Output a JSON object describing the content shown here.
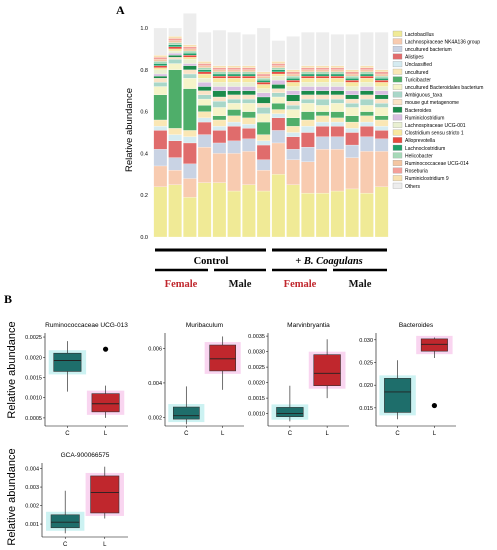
{
  "panel_a": {
    "label": "A",
    "chart_data": {
      "type": "bar",
      "stacked": true,
      "ylabel": "Relative abundance",
      "ylim": [
        0,
        1.0
      ],
      "yticks": [
        "0.0",
        "0.2",
        "0.4",
        "0.6",
        "0.8",
        "1.0"
      ],
      "n_samples": 16,
      "group_labels": [
        {
          "name": "control",
          "text": "Control"
        },
        {
          "name": "b-coagulans",
          "text": "+ B. Coagulans"
        }
      ],
      "sex_labels": [
        {
          "name": "female-1",
          "text": "Female",
          "color": "#c0272d"
        },
        {
          "name": "male-1",
          "text": "Male",
          "color": "#111111"
        },
        {
          "name": "female-2",
          "text": "Female",
          "color": "#c0272d"
        },
        {
          "name": "male-2",
          "text": "Male",
          "color": "#111111"
        }
      ],
      "series": [
        {
          "name": "Lactobacillus",
          "color": "#f0ea96",
          "values": [
            0.24,
            0.25,
            0.19,
            0.26,
            0.26,
            0.22,
            0.25,
            0.22,
            0.3,
            0.25,
            0.21,
            0.21,
            0.22,
            0.23,
            0.21,
            0.24
          ]
        },
        {
          "name": "Lachnospiraceae NK4A136 group",
          "color": "#f8cbb0",
          "values": [
            0.1,
            0.07,
            0.09,
            0.17,
            0.14,
            0.18,
            0.16,
            0.1,
            0.15,
            0.12,
            0.15,
            0.21,
            0.2,
            0.15,
            0.2,
            0.17
          ]
        },
        {
          "name": "uncultured bacterium",
          "color": "#c9d3e4",
          "values": [
            0.08,
            0.06,
            0.07,
            0.06,
            0.05,
            0.06,
            0.06,
            0.05,
            0.06,
            0.05,
            0.07,
            0.06,
            0.06,
            0.06,
            0.07,
            0.06
          ]
        },
        {
          "name": "Alistipes",
          "color": "#e06c6c",
          "values": [
            0.09,
            0.08,
            0.1,
            0.06,
            0.06,
            0.07,
            0.05,
            0.07,
            0.06,
            0.06,
            0.07,
            0.05,
            0.05,
            0.06,
            0.05,
            0.04
          ]
        },
        {
          "name": "Unclassified",
          "color": "#d5ebf1",
          "values": [
            0.02,
            0.03,
            0.03,
            0.02,
            0.02,
            0.02,
            0.02,
            0.02,
            0.02,
            0.02,
            0.03,
            0.02,
            0.02,
            0.02,
            0.02,
            0.02
          ]
        },
        {
          "name": "uncultured",
          "color": "#fae7b5",
          "values": [
            0.03,
            0.03,
            0.03,
            0.03,
            0.03,
            0.03,
            0.03,
            0.03,
            0.02,
            0.03,
            0.03,
            0.03,
            0.02,
            0.03,
            0.03,
            0.03
          ]
        },
        {
          "name": "Turicibacter",
          "color": "#4fae6a",
          "values": [
            0.12,
            0.28,
            0.2,
            0.03,
            0.02,
            0.03,
            0.03,
            0.06,
            0.03,
            0.04,
            0.04,
            0.02,
            0.03,
            0.03,
            0.02,
            0.02
          ]
        },
        {
          "name": "uncultured Bacteroidales bacterium",
          "color": "#f6f4c9",
          "values": [
            0.04,
            0.03,
            0.05,
            0.03,
            0.04,
            0.03,
            0.04,
            0.04,
            0.03,
            0.04,
            0.04,
            0.03,
            0.04,
            0.04,
            0.03,
            0.04
          ]
        },
        {
          "name": "Ambiguous_taxa",
          "color": "#a9d7c9",
          "values": [
            0.02,
            0.02,
            0.02,
            0.02,
            0.03,
            0.02,
            0.02,
            0.03,
            0.02,
            0.02,
            0.02,
            0.03,
            0.02,
            0.02,
            0.03,
            0.02
          ]
        },
        {
          "name": "mouse gut metagenome",
          "color": "#fbe3c6",
          "values": [
            0.02,
            0.01,
            0.02,
            0.02,
            0.02,
            0.02,
            0.02,
            0.02,
            0.02,
            0.02,
            0.02,
            0.02,
            0.02,
            0.02,
            0.02,
            0.02
          ]
        },
        {
          "name": "Bacteroides",
          "color": "#1c8b4b",
          "values": [
            0.01,
            0.01,
            0.02,
            0.02,
            0.03,
            0.02,
            0.02,
            0.03,
            0.02,
            0.03,
            0.02,
            0.02,
            0.02,
            0.02,
            0.02,
            0.02
          ]
        },
        {
          "name": "Ruminiclostridium",
          "color": "#d8bee1",
          "values": [
            0.01,
            0.01,
            0.01,
            0.02,
            0.02,
            0.02,
            0.02,
            0.02,
            0.02,
            0.02,
            0.02,
            0.02,
            0.02,
            0.02,
            0.02,
            0.02
          ]
        },
        {
          "name": "Lachnospiraceae UCG-001",
          "color": "#e9f0d2",
          "values": [
            0.02,
            0.01,
            0.02,
            0.02,
            0.02,
            0.02,
            0.02,
            0.02,
            0.02,
            0.02,
            0.02,
            0.02,
            0.02,
            0.02,
            0.02,
            0.02
          ]
        },
        {
          "name": "Clostridium sensu stricto 1",
          "color": "#f7e8a0",
          "values": [
            0.01,
            0.01,
            0.01,
            0.02,
            0.02,
            0.02,
            0.02,
            0.02,
            0.01,
            0.02,
            0.02,
            0.02,
            0.02,
            0.02,
            0.02,
            0.02
          ]
        },
        {
          "name": "Alloprevotella",
          "color": "#e8493d",
          "values": [
            0.01,
            0.01,
            0.01,
            0.01,
            0.01,
            0.01,
            0.01,
            0.01,
            0.01,
            0.01,
            0.01,
            0.01,
            0.01,
            0.01,
            0.01,
            0.01
          ]
        },
        {
          "name": "Lachnoclostridium",
          "color": "#1fa06a",
          "values": [
            0.01,
            0.01,
            0.01,
            0.01,
            0.01,
            0.01,
            0.01,
            0.01,
            0.01,
            0.01,
            0.01,
            0.01,
            0.01,
            0.01,
            0.01,
            0.01
          ]
        },
        {
          "name": "Helicobacter",
          "color": "#a6d9b8",
          "values": [
            0.01,
            0.01,
            0.01,
            0.01,
            0.01,
            0.01,
            0.01,
            0.01,
            0.01,
            0.01,
            0.01,
            0.01,
            0.01,
            0.01,
            0.01,
            0.01
          ]
        },
        {
          "name": "Ruminococcaceae UCG-014",
          "color": "#f4c6a2",
          "values": [
            0.01,
            0.01,
            0.01,
            0.01,
            0.01,
            0.01,
            0.01,
            0.01,
            0.01,
            0.01,
            0.01,
            0.01,
            0.01,
            0.01,
            0.01,
            0.01
          ]
        },
        {
          "name": "Roseburia",
          "color": "#f3a09a",
          "values": [
            0.01,
            0.01,
            0.01,
            0.01,
            0.01,
            0.01,
            0.01,
            0.01,
            0.01,
            0.01,
            0.01,
            0.01,
            0.01,
            0.01,
            0.01,
            0.01
          ]
        },
        {
          "name": "Ruminiclostridium 9",
          "color": "#f7e1b0",
          "values": [
            0.01,
            0.01,
            0.01,
            0.01,
            0.01,
            0.01,
            0.01,
            0.01,
            0.01,
            0.01,
            0.01,
            0.01,
            0.01,
            0.01,
            0.01,
            0.01
          ]
        },
        {
          "name": "Others",
          "color": "#ededed",
          "values": [
            0.13,
            0.04,
            0.15,
            0.14,
            0.17,
            0.16,
            0.15,
            0.21,
            0.1,
            0.16,
            0.16,
            0.16,
            0.15,
            0.17,
            0.16,
            0.18
          ]
        }
      ]
    }
  },
  "panel_b": {
    "label": "B",
    "ylabel": "Relative abundance",
    "chart_data": [
      {
        "type": "box",
        "title": "Ruminococcaceae UCG-013",
        "categories": [
          "C",
          "L"
        ],
        "ylim": [
          0.0003,
          0.0026
        ],
        "yticks": [
          0.0005,
          0.001,
          0.0015,
          0.002,
          0.0025
        ],
        "yticklabels": [
          "0.0005",
          "0.0010",
          "0.0015",
          "0.0020",
          "0.0025"
        ],
        "boxes": [
          {
            "category": "C",
            "min": 0.00115,
            "q1": 0.00165,
            "median": 0.00192,
            "q3": 0.0021,
            "max": 0.0024,
            "outliers": [],
            "color": "#1e6e6b",
            "shadow": "#b7ecec"
          },
          {
            "category": "L",
            "min": 0.0005,
            "q1": 0.00065,
            "median": 0.00085,
            "q3": 0.0011,
            "max": 0.0013,
            "outliers": [
              0.0022
            ],
            "color": "#c0272d",
            "shadow": "#f7c3ea"
          }
        ]
      },
      {
        "type": "box",
        "title": "Muribaculum",
        "categories": [
          "C",
          "L"
        ],
        "ylim": [
          0.0015,
          0.0069
        ],
        "yticks": [
          0.002,
          0.004,
          0.006
        ],
        "yticklabels": [
          "0.002",
          "0.004",
          "0.006"
        ],
        "boxes": [
          {
            "category": "C",
            "min": 0.0016,
            "q1": 0.0019,
            "median": 0.0021,
            "q3": 0.0026,
            "max": 0.0038,
            "outliers": [],
            "color": "#1e6e6b",
            "shadow": "#b7ecec"
          },
          {
            "category": "L",
            "min": 0.0036,
            "q1": 0.0047,
            "median": 0.0054,
            "q3": 0.0062,
            "max": 0.0067,
            "outliers": [],
            "color": "#c0272d",
            "shadow": "#f7c3ea"
          }
        ]
      },
      {
        "type": "box",
        "title": "Marvinbryantia",
        "categories": [
          "C",
          "L"
        ],
        "ylim": [
          0.0006,
          0.0036
        ],
        "yticks": [
          0.001,
          0.0015,
          0.002,
          0.0025,
          0.003,
          0.0035
        ],
        "yticklabels": [
          "0.0010",
          "0.0015",
          "0.0020",
          "0.0025",
          "0.0030",
          "0.0035"
        ],
        "boxes": [
          {
            "category": "C",
            "min": 0.00075,
            "q1": 0.0009,
            "median": 0.001,
            "q3": 0.0012,
            "max": 0.0019,
            "outliers": [],
            "color": "#1e6e6b",
            "shadow": "#b7ecec"
          },
          {
            "category": "L",
            "min": 0.0015,
            "q1": 0.0019,
            "median": 0.0023,
            "q3": 0.0029,
            "max": 0.0034,
            "outliers": [],
            "color": "#c0272d",
            "shadow": "#f7c3ea"
          }
        ]
      },
      {
        "type": "box",
        "title": "Bacteroides",
        "categories": [
          "C",
          "L"
        ],
        "ylim": [
          0.011,
          0.0315
        ],
        "yticks": [
          0.015,
          0.02,
          0.025,
          0.03
        ],
        "yticklabels": [
          "0.015",
          "0.020",
          "0.025",
          "0.030"
        ],
        "boxes": [
          {
            "category": "C",
            "min": 0.0125,
            "q1": 0.014,
            "median": 0.0185,
            "q3": 0.0215,
            "max": 0.0255,
            "outliers": [],
            "color": "#1e6e6b",
            "shadow": "#b7ecec"
          },
          {
            "category": "L",
            "min": 0.026,
            "q1": 0.0275,
            "median": 0.029,
            "q3": 0.0302,
            "max": 0.0305,
            "outliers": [
              0.0155
            ],
            "color": "#c0272d",
            "shadow": "#f7c3ea"
          }
        ]
      },
      {
        "type": "box",
        "title": "GCA-900066575",
        "categories": [
          "C",
          "L"
        ],
        "ylim": [
          0.0003,
          0.0043
        ],
        "yticks": [
          0.001,
          0.002,
          0.003,
          0.004
        ],
        "yticklabels": [
          "0.001",
          "0.002",
          "0.003",
          "0.004"
        ],
        "boxes": [
          {
            "category": "C",
            "min": 0.0005,
            "q1": 0.0008,
            "median": 0.0011,
            "q3": 0.0015,
            "max": 0.0028,
            "outliers": [],
            "color": "#1e6e6b",
            "shadow": "#b7ecec"
          },
          {
            "category": "L",
            "min": 0.0013,
            "q1": 0.0016,
            "median": 0.0027,
            "q3": 0.0036,
            "max": 0.0041,
            "outliers": [],
            "color": "#c0272d",
            "shadow": "#f7c3ea"
          }
        ]
      }
    ]
  }
}
